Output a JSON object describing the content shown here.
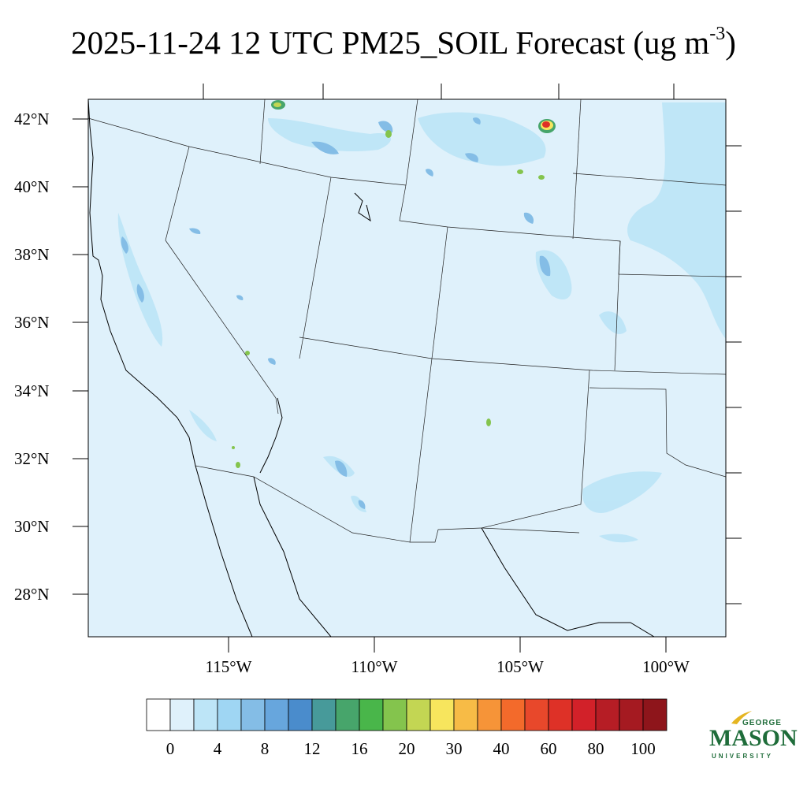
{
  "title": {
    "text": "2025-11-24 12 UTC PM25_SOIL Forecast (ug m",
    "sup": "-3",
    "close": ")"
  },
  "map": {
    "projection": "lambert-conformal",
    "background_color": "#dff1fb",
    "lat_labels": [
      "42°N",
      "40°N",
      "38°N",
      "36°N",
      "34°N",
      "32°N",
      "30°N",
      "28°N"
    ],
    "lon_labels": [
      "115°W",
      "110°W",
      "105°W",
      "100°W"
    ]
  },
  "colorbar": {
    "colors": [
      "#ffffff",
      "#dff1fb",
      "#bde5f7",
      "#9fd6f3",
      "#84bde6",
      "#67a6dd",
      "#4a8ccc",
      "#479a9a",
      "#47a56b",
      "#49b64a",
      "#84c44d",
      "#c3d653",
      "#f7e55d",
      "#f7bb46",
      "#f69438",
      "#f36a2b",
      "#e8482b",
      "#de3127",
      "#d22129",
      "#b61d25",
      "#a51a21",
      "#8e151b"
    ],
    "labels": [
      "0",
      "4",
      "8",
      "12",
      "16",
      "20",
      "30",
      "40",
      "60",
      "80",
      "100"
    ]
  },
  "logo": {
    "line1": "GEORGE",
    "line2": "MASON",
    "line3": "UNIVERSITY"
  }
}
